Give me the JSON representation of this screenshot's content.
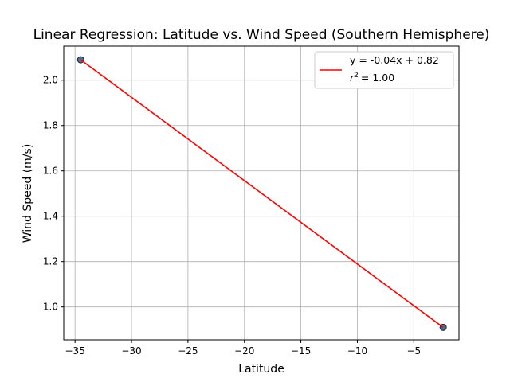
{
  "chart_data": {
    "type": "scatter",
    "title": "Linear Regression: Latitude vs. Wind Speed (Southern Hemisphere)",
    "xlabel": "Latitude",
    "ylabel": "Wind Speed (m/s)",
    "xlim": [
      -36,
      -1
    ],
    "ylim": [
      0.855,
      2.15
    ],
    "grid": true,
    "x_ticks": [
      -35,
      -30,
      -25,
      -20,
      -15,
      -10,
      -5
    ],
    "y_ticks": [
      1.0,
      1.2,
      1.4,
      1.6,
      1.8,
      2.0
    ],
    "x_tick_labels": [
      "−35",
      "−30",
      "−25",
      "−20",
      "−15",
      "−10",
      "−5"
    ],
    "y_tick_labels": [
      "1.0",
      "1.2",
      "1.4",
      "1.6",
      "1.8",
      "2.0"
    ],
    "points": [
      {
        "x": -34.5,
        "y": 2.09
      },
      {
        "x": -2.4,
        "y": 0.91
      }
    ],
    "regression": {
      "slope": -0.04,
      "intercept": 0.82,
      "equation_label": "y = -0.04x + 0.82",
      "r2_label": "= 1.00",
      "r2_symbol": "r",
      "line_points": [
        {
          "x": -34.5,
          "y": 2.09
        },
        {
          "x": -2.4,
          "y": 0.91
        }
      ]
    },
    "legend_position": "top-right",
    "colors": {
      "point_fill": "#4a6f9f",
      "point_edge": "#222222",
      "line": "#ff0000",
      "grid": "#b0b0b0"
    }
  }
}
